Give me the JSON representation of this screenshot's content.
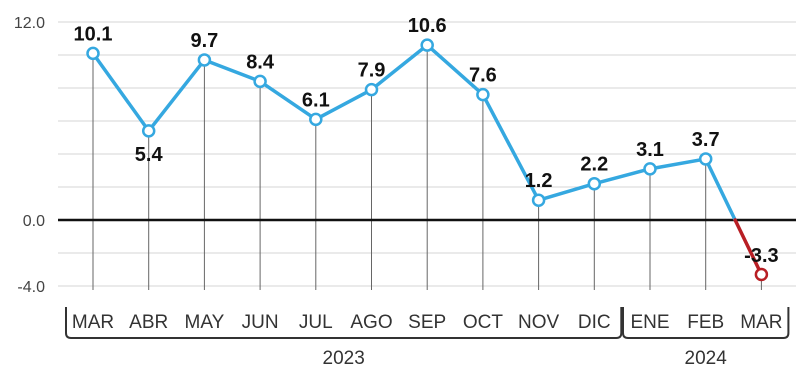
{
  "chart_data": {
    "type": "line",
    "categories": [
      "MAR",
      "ABR",
      "MAY",
      "JUN",
      "JUL",
      "AGO",
      "SEP",
      "OCT",
      "NOV",
      "DIC",
      "ENE",
      "FEB",
      "MAR"
    ],
    "values": [
      10.1,
      5.4,
      9.7,
      8.4,
      6.1,
      7.9,
      10.6,
      7.6,
      1.2,
      2.2,
      3.1,
      3.7,
      -3.3
    ],
    "value_labels": [
      "10.1",
      "5.4",
      "9.7",
      "8.4",
      "6.1",
      "7.9",
      "10.6",
      "7.6",
      "1.2",
      "2.2",
      "3.1",
      "3.7",
      "-3.3"
    ],
    "label_position": [
      "above",
      "below",
      "above",
      "above",
      "above",
      "above",
      "above",
      "above",
      "above",
      "above",
      "above",
      "above",
      "above"
    ],
    "y_ticks": [
      {
        "value": 12.0,
        "label": "12.0"
      },
      {
        "value": 0.0,
        "label": "0.0"
      },
      {
        "value": -4.0,
        "label": "-4.0"
      }
    ],
    "ylim": [
      -4,
      12
    ],
    "grid": true,
    "groups": [
      {
        "label": "2023",
        "start": 0,
        "end": 9
      },
      {
        "label": "2024",
        "start": 10,
        "end": 12
      }
    ],
    "colors": {
      "line_positive": "#35a8e0",
      "line_negative": "#b81e24",
      "marker_fill": "#ffffff",
      "grid": "#d4d4d4",
      "zero_line": "#111111",
      "drop_line": "#666666"
    }
  }
}
